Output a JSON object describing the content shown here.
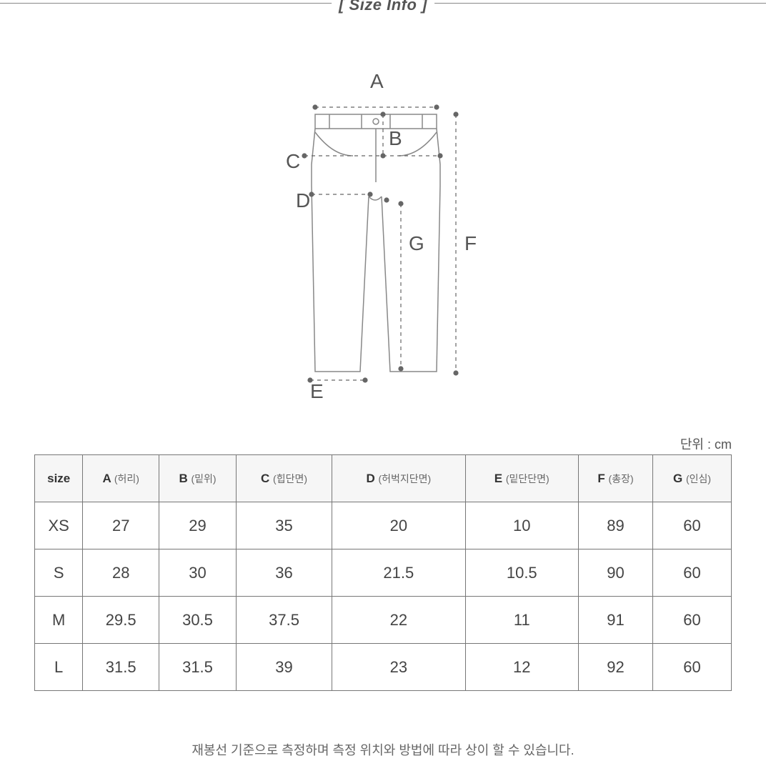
{
  "title": "[ Size Info ]",
  "unit_label": "단위 : cm",
  "diagram": {
    "labels": {
      "A": "A",
      "B": "B",
      "C": "C",
      "D": "D",
      "E": "E",
      "F": "F",
      "G": "G"
    },
    "outline_color": "#888888",
    "dash_color": "#666666",
    "label_color": "#555555",
    "label_fontsize": 28
  },
  "table": {
    "columns": [
      {
        "key": "size",
        "label_main": "size",
        "label_sub": ""
      },
      {
        "key": "A",
        "label_main": "A",
        "label_sub": "(허리)"
      },
      {
        "key": "B",
        "label_main": "B",
        "label_sub": "(밑위)"
      },
      {
        "key": "C",
        "label_main": "C",
        "label_sub": "(힙단면)"
      },
      {
        "key": "D",
        "label_main": "D",
        "label_sub": "(허벅지단면)"
      },
      {
        "key": "E",
        "label_main": "E",
        "label_sub": "(밑단단면)"
      },
      {
        "key": "F",
        "label_main": "F",
        "label_sub": "(총장)"
      },
      {
        "key": "G",
        "label_main": "G",
        "label_sub": "(인심)"
      }
    ],
    "rows": [
      {
        "size": "XS",
        "A": "27",
        "B": "29",
        "C": "35",
        "D": "20",
        "E": "10",
        "F": "89",
        "G": "60"
      },
      {
        "size": "S",
        "A": "28",
        "B": "30",
        "C": "36",
        "D": "21.5",
        "E": "10.5",
        "F": "90",
        "G": "60"
      },
      {
        "size": "M",
        "A": "29.5",
        "B": "30.5",
        "C": "37.5",
        "D": "22",
        "E": "11",
        "F": "91",
        "G": "60"
      },
      {
        "size": "L",
        "A": "31.5",
        "B": "31.5",
        "C": "39",
        "D": "23",
        "E": "12",
        "F": "92",
        "G": "60"
      }
    ],
    "header_bg": "#f6f6f6",
    "border_color": "#777777",
    "text_color": "#444444"
  },
  "footnote": "재봉선 기준으로 측정하며 측정 위치와 방법에 따라 상이 할 수 있습니다."
}
